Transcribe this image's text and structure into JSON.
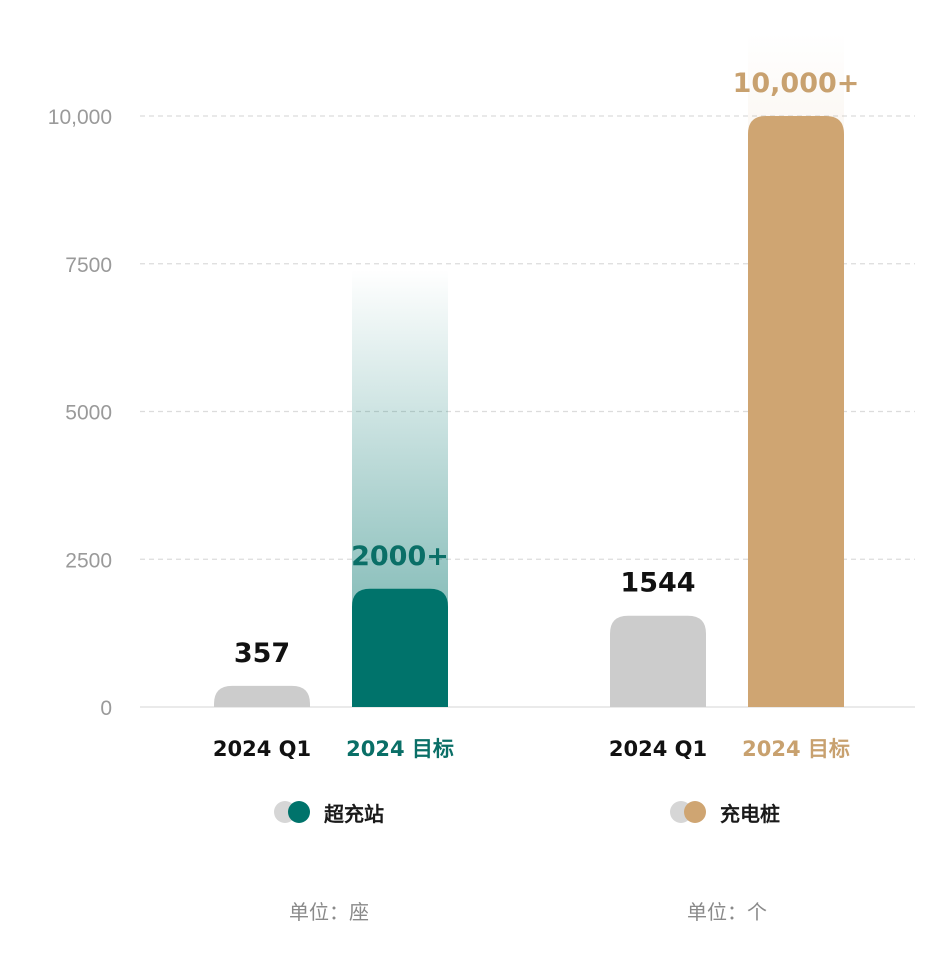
{
  "chart_data": {
    "type": "bar",
    "ylim": [
      0,
      11500
    ],
    "yticks": [
      0,
      2500,
      5000,
      7500,
      10000
    ],
    "ytick_labels": [
      "0",
      "2500",
      "5000",
      "7500",
      "10,000"
    ],
    "grid": true,
    "groups": [
      {
        "series_name": "超充站",
        "unit": "单位：座",
        "colors": {
          "q1": "#cccccc",
          "target": "#00736b",
          "target_label": "#0a6f67"
        },
        "bars": [
          {
            "category": "2024 Q1",
            "value": 357,
            "label": "357",
            "projection": 0
          },
          {
            "category": "2024 目标",
            "value": 2000,
            "label": "2000+",
            "projection": 7400
          }
        ]
      },
      {
        "series_name": "充电桩",
        "unit": "单位：个",
        "colors": {
          "q1": "#cccccc",
          "target": "#cfa572",
          "target_label": "#c8a16f"
        },
        "bars": [
          {
            "category": "2024 Q1",
            "value": 1544,
            "label": "1544",
            "projection": 0
          },
          {
            "category": "2024 目标",
            "value": 10000,
            "label": "10,000+",
            "projection": 11400
          }
        ]
      }
    ]
  }
}
